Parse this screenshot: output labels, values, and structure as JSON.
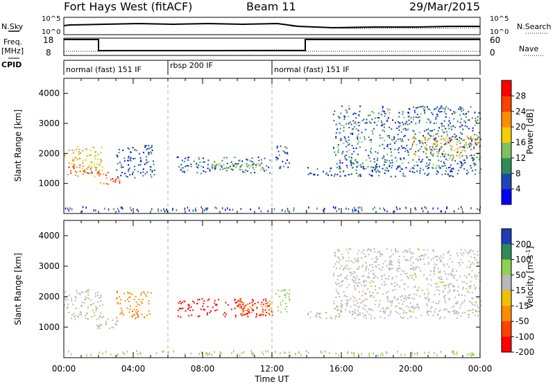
{
  "header": {
    "radar": "Fort Hays West (fitACF)",
    "beam": "Beam 11",
    "date": "29/Mar/2015"
  },
  "aux": {
    "nsky_label": "N.Sky",
    "nsearch_label": "N.Search",
    "nsky_ticks": [
      "10^5",
      "10^0"
    ],
    "nsearch_ticks": [
      "10^5",
      "10^0"
    ],
    "freq_label": "Freq.",
    "freq_unit": "[MHz]",
    "freq_ticks": [
      "18",
      "8"
    ],
    "nave_label": "Nave",
    "nave_ticks": [
      "60",
      "0"
    ],
    "cpid_label": "CPID"
  },
  "cpid_segments": [
    {
      "start_hour": 0,
      "end_hour": 6,
      "label": "normal (fast) 151 IF"
    },
    {
      "start_hour": 6,
      "end_hour": 12,
      "label": "rbsp 200 IF"
    },
    {
      "start_hour": 12,
      "end_hour": 24,
      "label": "normal (fast) 151 IF"
    }
  ],
  "chart_data": [
    {
      "type": "heatmap",
      "parameter": "Power",
      "ylabel": "Slant Range [km]",
      "xlim_hours": [
        0,
        24
      ],
      "ylim_km": [
        0,
        4500
      ],
      "ytick_values": [
        1000,
        2000,
        3000,
        4000
      ],
      "colorbar": {
        "label": "Power [dB]",
        "ticks": [
          "4",
          "8",
          "12",
          "16",
          "20",
          "24",
          "28"
        ],
        "colors": [
          "#0000ff",
          "#1e46b4",
          "#2e8b57",
          "#7fbf5f",
          "#f0d000",
          "#ff8c00",
          "#ff4000",
          "#ff0000"
        ]
      },
      "regions": [
        {
          "t0": 0.0,
          "t1": 2.2,
          "r0": 1250,
          "r1": 2250,
          "level": 0.55
        },
        {
          "t0": 0.2,
          "t1": 1.6,
          "r0": 1300,
          "r1": 1650,
          "level": 0.85
        },
        {
          "t0": 1.9,
          "t1": 3.2,
          "r0": 950,
          "r1": 1400,
          "level": 0.8
        },
        {
          "t0": 3.0,
          "t1": 5.2,
          "r0": 1200,
          "r1": 2300,
          "level": 0.2
        },
        {
          "t0": 6.5,
          "t1": 12.0,
          "r0": 1350,
          "r1": 1900,
          "level": 0.25
        },
        {
          "t0": 8.5,
          "t1": 11.5,
          "r0": 1450,
          "r1": 1750,
          "level": 0.45
        },
        {
          "t0": 12.2,
          "t1": 13.0,
          "r0": 1500,
          "r1": 2300,
          "level": 0.2
        },
        {
          "t0": 14.0,
          "t1": 24.0,
          "r0": 1250,
          "r1": 1550,
          "level": 0.2
        },
        {
          "t0": 15.5,
          "t1": 24.0,
          "r0": 1500,
          "r1": 3600,
          "level": 0.25
        },
        {
          "t0": 20.0,
          "t1": 24.0,
          "r0": 1900,
          "r1": 2600,
          "level": 0.6
        }
      ]
    },
    {
      "type": "heatmap",
      "parameter": "Velocity",
      "ylabel": "Slant Range [km]",
      "xlabel": "Time UT",
      "xlim_hours": [
        0,
        24
      ],
      "ylim_km": [
        0,
        4500
      ],
      "ytick_values": [
        1000,
        2000,
        3000,
        4000
      ],
      "xtick_labels": [
        "00:00",
        "04:00",
        "08:00",
        "12:00",
        "16:00",
        "20:00",
        "00:00"
      ],
      "colorbar": {
        "label": "Velocity [m s^-1]",
        "ticks": [
          "200",
          "100",
          "50",
          "15",
          "-15",
          "-50",
          "-100",
          "-200"
        ],
        "colors": [
          "#1e3cb4",
          "#2e8b57",
          "#90d050",
          "#b8b8b8",
          "#f0c000",
          "#ff8c00",
          "#ff4000",
          "#ff0000"
        ]
      },
      "regions": [
        {
          "t0": 0.0,
          "t1": 2.2,
          "r0": 1250,
          "r1": 2250,
          "class": "gray"
        },
        {
          "t0": 1.8,
          "t1": 3.2,
          "r0": 950,
          "r1": 1400,
          "class": "gray"
        },
        {
          "t0": 3.0,
          "t1": 5.0,
          "r0": 1300,
          "r1": 2200,
          "class": "orange"
        },
        {
          "t0": 6.5,
          "t1": 12.0,
          "r0": 1350,
          "r1": 1950,
          "class": "red"
        },
        {
          "t0": 10.0,
          "t1": 12.0,
          "r0": 1400,
          "r1": 1900,
          "class": "orange"
        },
        {
          "t0": 12.2,
          "t1": 13.0,
          "r0": 1500,
          "r1": 2300,
          "class": "green"
        },
        {
          "t0": 14.0,
          "t1": 24.0,
          "r0": 1300,
          "r1": 1550,
          "class": "gray"
        },
        {
          "t0": 15.5,
          "t1": 24.0,
          "r0": 1500,
          "r1": 3600,
          "class": "gray"
        }
      ]
    }
  ]
}
